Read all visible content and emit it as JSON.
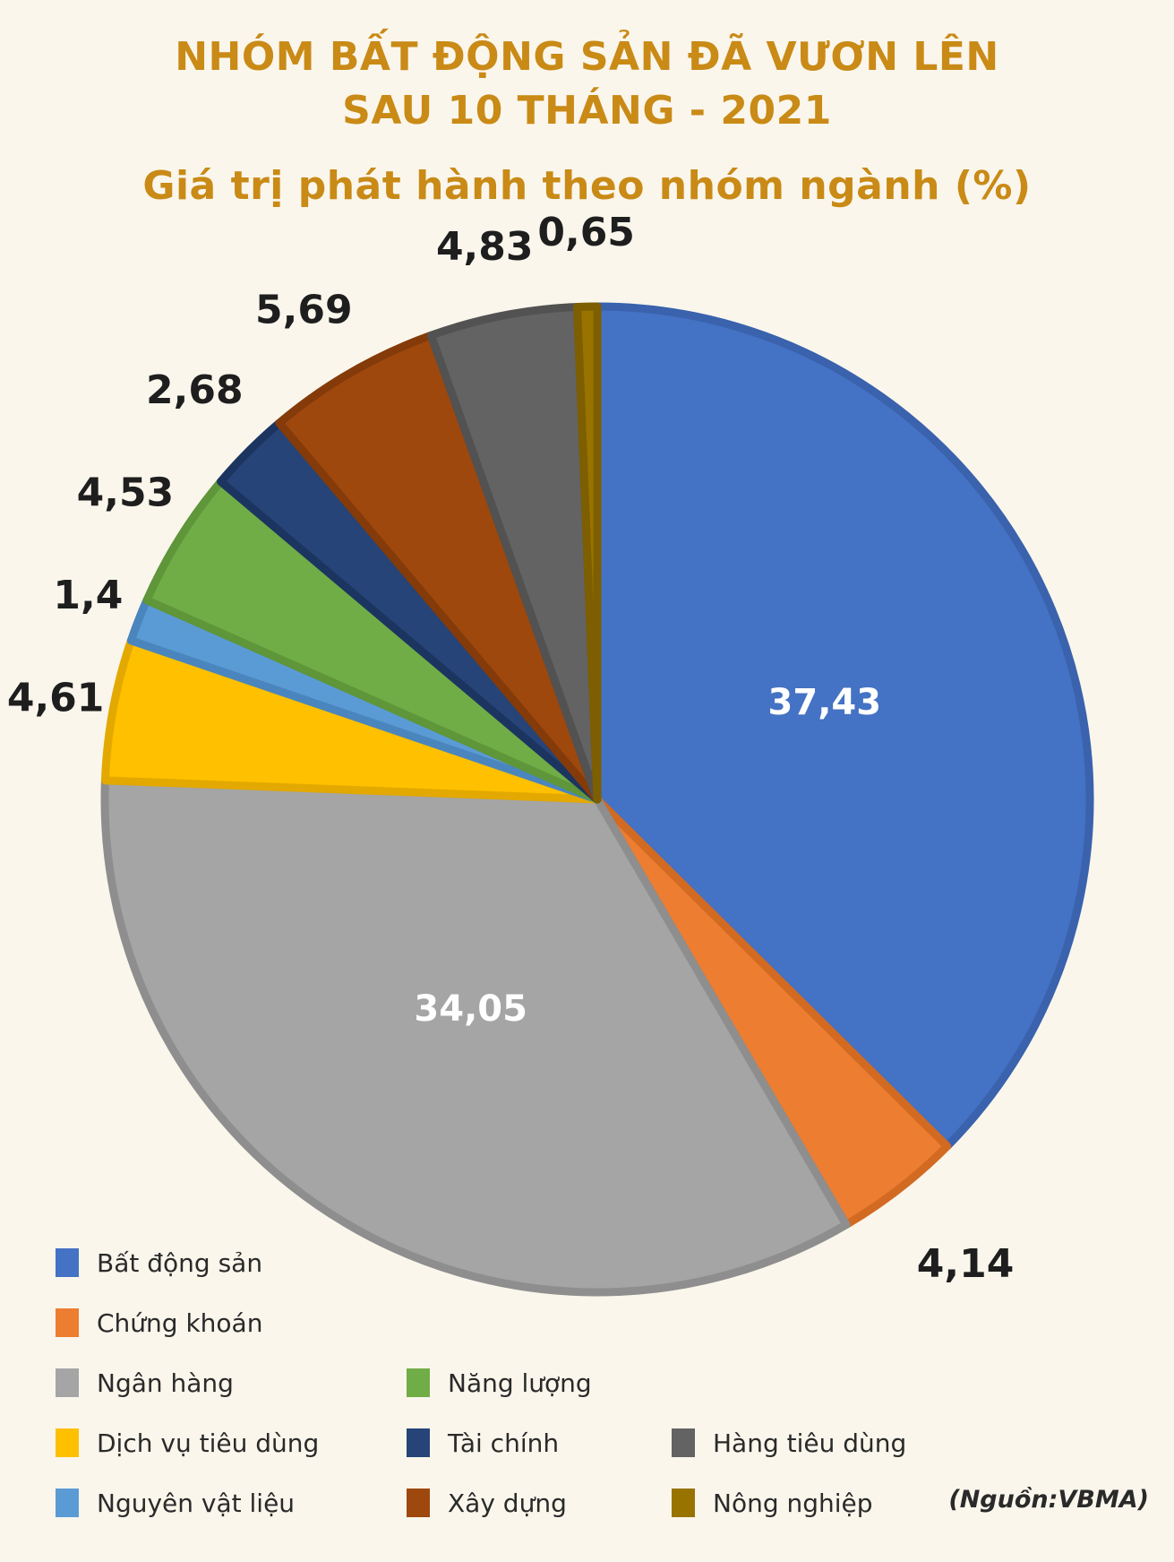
{
  "header": {
    "title_line1": "NHÓM BẤT ĐỘNG SẢN ĐÃ VƯƠN LÊN",
    "title_line2": "SAU 10 THÁNG - 2021",
    "subtitle": "Giá trị phát hành theo nhóm ngành (%)"
  },
  "chart_data": {
    "type": "pie",
    "title": "Giá trị phát hành theo nhóm ngành (%)",
    "start": "12 o'clock, clockwise",
    "slices": [
      {
        "name": "Bất động sản",
        "value": 37.43,
        "label": "37,43",
        "color": "#4472c4",
        "border": "#3a62ad"
      },
      {
        "name": "Chứng khoán",
        "value": 4.14,
        "label": "4,14",
        "color": "#ed7d31",
        "border": "#d26a22"
      },
      {
        "name": "Ngân hàng",
        "value": 34.05,
        "label": "34,05",
        "color": "#a5a5a5",
        "border": "#8e8e8e"
      },
      {
        "name": "Dịch vụ tiêu dùng",
        "value": 4.61,
        "label": "4,61",
        "color": "#ffc000",
        "border": "#e3a900"
      },
      {
        "name": "Nguyên vật liệu",
        "value": 1.4,
        "label": "1,4",
        "color": "#5b9bd5",
        "border": "#4a86bd"
      },
      {
        "name": "Năng lượng",
        "value": 4.53,
        "label": "4,53",
        "color": "#70ad47",
        "border": "#5e9639"
      },
      {
        "name": "Tài chính",
        "value": 2.68,
        "label": "2,68",
        "color": "#264478",
        "border": "#1c3560"
      },
      {
        "name": "Xây dựng",
        "value": 5.69,
        "label": "5,69",
        "color": "#9e480e",
        "border": "#843b09"
      },
      {
        "name": "Hàng tiêu dùng",
        "value": 4.83,
        "label": "4,83",
        "color": "#636363",
        "border": "#525252"
      },
      {
        "name": "Nông nghiệp",
        "value": 0.65,
        "label": "0,65",
        "color": "#997300",
        "border": "#7d5e00"
      }
    ]
  },
  "legend": {
    "items": [
      {
        "label": "Bất động sản",
        "color": "#4472c4"
      },
      {
        "label": "Chứng khoán",
        "color": "#ed7d31"
      },
      {
        "label": "Ngân hàng",
        "color": "#a5a5a5"
      },
      {
        "label": "Năng lượng",
        "color": "#70ad47"
      },
      {
        "label": "Dịch vụ tiêu dùng",
        "color": "#ffc000"
      },
      {
        "label": "Tài chính",
        "color": "#264478"
      },
      {
        "label": "Hàng tiêu dùng",
        "color": "#636363"
      },
      {
        "label": "Nguyên vật liệu",
        "color": "#5b9bd5"
      },
      {
        "label": "Xây dựng",
        "color": "#9e480e"
      },
      {
        "label": "Nông nghiệp",
        "color": "#997300"
      }
    ]
  },
  "source": "(Nguồn:VBMA)"
}
